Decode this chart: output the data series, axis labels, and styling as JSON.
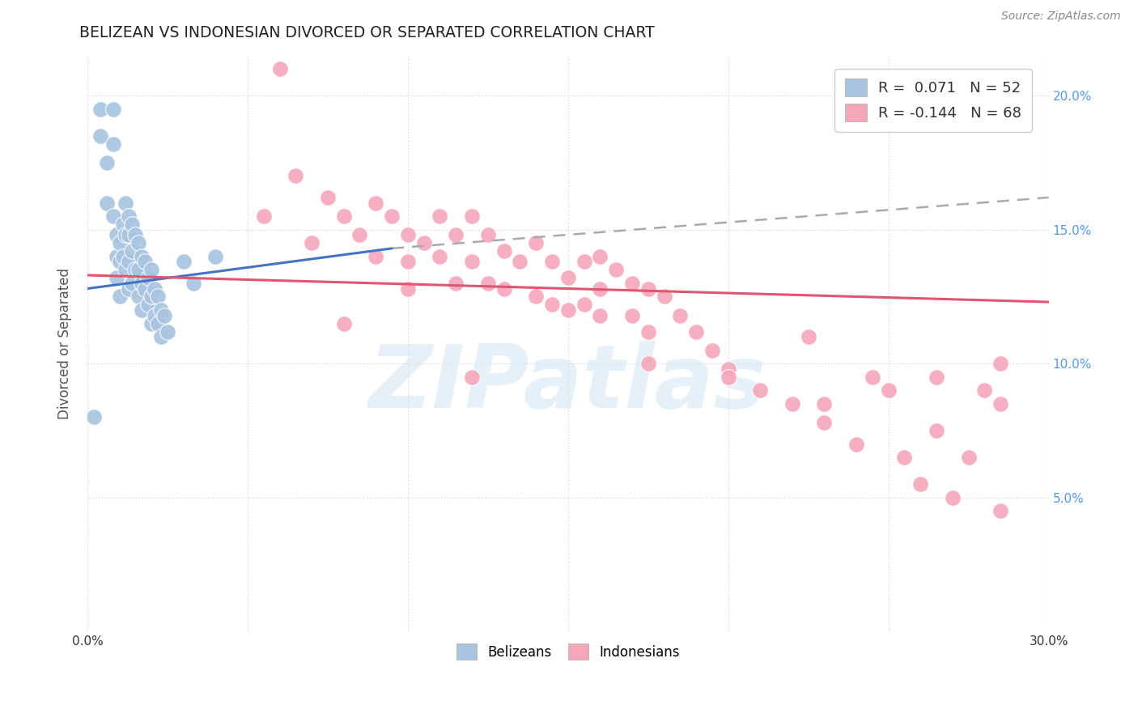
{
  "title": "BELIZEAN VS INDONESIAN DIVORCED OR SEPARATED CORRELATION CHART",
  "source_text": "Source: ZipAtlas.com",
  "ylabel": "Divorced or Separated",
  "xlim": [
    0.0,
    0.3
  ],
  "ylim": [
    0.0,
    0.215
  ],
  "xticks": [
    0.0,
    0.05,
    0.1,
    0.15,
    0.2,
    0.25,
    0.3
  ],
  "xtick_labels": [
    "0.0%",
    "",
    "",
    "",
    "",
    "",
    "30.0%"
  ],
  "yticks_right": [
    0.05,
    0.1,
    0.15,
    0.2
  ],
  "ytick_labels_right": [
    "5.0%",
    "10.0%",
    "15.0%",
    "20.0%"
  ],
  "belizean_color": "#a8c4e0",
  "indonesian_color": "#f4a7b9",
  "belizean_R": 0.071,
  "belizean_N": 52,
  "indonesian_R": -0.144,
  "indonesian_N": 68,
  "legend_label_1": "R =  0.071   N = 52",
  "legend_label_2": "R = -0.144   N = 68",
  "watermark": "ZIPatlas",
  "background_color": "#ffffff",
  "grid_color": "#d8d8d8",
  "bel_line_color": "#4472c4",
  "ind_line_color": "#e05570",
  "dash_line_color": "#aaaaaa",
  "right_tick_color": "#5599ee",
  "title_color": "#222222",
  "source_color": "#888888",
  "ylabel_color": "#555555",
  "belizean_x": [
    0.002,
    0.004,
    0.004,
    0.006,
    0.006,
    0.008,
    0.008,
    0.008,
    0.009,
    0.009,
    0.009,
    0.01,
    0.01,
    0.01,
    0.011,
    0.011,
    0.012,
    0.012,
    0.012,
    0.013,
    0.013,
    0.013,
    0.013,
    0.014,
    0.014,
    0.014,
    0.015,
    0.015,
    0.016,
    0.016,
    0.016,
    0.017,
    0.017,
    0.017,
    0.018,
    0.018,
    0.019,
    0.019,
    0.02,
    0.02,
    0.02,
    0.021,
    0.021,
    0.022,
    0.022,
    0.023,
    0.023,
    0.024,
    0.025,
    0.03,
    0.033,
    0.04
  ],
  "belizean_y": [
    0.08,
    0.195,
    0.185,
    0.175,
    0.16,
    0.195,
    0.182,
    0.155,
    0.148,
    0.14,
    0.132,
    0.145,
    0.138,
    0.125,
    0.152,
    0.14,
    0.16,
    0.148,
    0.135,
    0.155,
    0.148,
    0.138,
    0.128,
    0.152,
    0.142,
    0.13,
    0.148,
    0.135,
    0.145,
    0.135,
    0.125,
    0.14,
    0.13,
    0.12,
    0.138,
    0.128,
    0.132,
    0.122,
    0.135,
    0.125,
    0.115,
    0.128,
    0.118,
    0.125,
    0.115,
    0.12,
    0.11,
    0.118,
    0.112,
    0.138,
    0.13,
    0.14
  ],
  "indonesian_x": [
    0.055,
    0.065,
    0.07,
    0.075,
    0.08,
    0.085,
    0.09,
    0.09,
    0.095,
    0.1,
    0.1,
    0.1,
    0.105,
    0.11,
    0.11,
    0.115,
    0.115,
    0.12,
    0.12,
    0.125,
    0.125,
    0.13,
    0.13,
    0.135,
    0.14,
    0.14,
    0.145,
    0.145,
    0.15,
    0.155,
    0.155,
    0.16,
    0.16,
    0.16,
    0.165,
    0.17,
    0.17,
    0.175,
    0.175,
    0.18,
    0.185,
    0.19,
    0.195,
    0.2,
    0.21,
    0.22,
    0.225,
    0.23,
    0.24,
    0.245,
    0.25,
    0.255,
    0.26,
    0.265,
    0.27,
    0.275,
    0.28,
    0.285,
    0.08,
    0.12,
    0.15,
    0.175,
    0.2,
    0.23,
    0.265,
    0.285,
    0.285,
    0.06
  ],
  "indonesian_y": [
    0.155,
    0.17,
    0.145,
    0.162,
    0.155,
    0.148,
    0.16,
    0.14,
    0.155,
    0.148,
    0.138,
    0.128,
    0.145,
    0.155,
    0.14,
    0.148,
    0.13,
    0.155,
    0.138,
    0.148,
    0.13,
    0.142,
    0.128,
    0.138,
    0.145,
    0.125,
    0.138,
    0.122,
    0.132,
    0.138,
    0.122,
    0.14,
    0.128,
    0.118,
    0.135,
    0.13,
    0.118,
    0.128,
    0.112,
    0.125,
    0.118,
    0.112,
    0.105,
    0.098,
    0.09,
    0.085,
    0.11,
    0.078,
    0.07,
    0.095,
    0.09,
    0.065,
    0.055,
    0.075,
    0.05,
    0.065,
    0.09,
    0.045,
    0.115,
    0.095,
    0.12,
    0.1,
    0.095,
    0.085,
    0.095,
    0.085,
    0.1,
    0.21
  ],
  "bel_line_x0": 0.0,
  "bel_line_x1": 0.095,
  "bel_line_y0": 0.128,
  "bel_line_y1": 0.143,
  "dash_line_x0": 0.095,
  "dash_line_x1": 0.3,
  "dash_line_y0": 0.143,
  "dash_line_y1": 0.162,
  "ind_line_x0": 0.0,
  "ind_line_x1": 0.3,
  "ind_line_y0": 0.133,
  "ind_line_y1": 0.123
}
